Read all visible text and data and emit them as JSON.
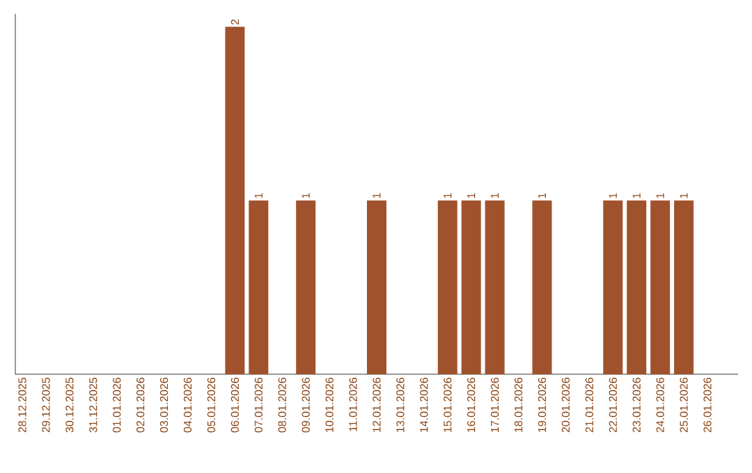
{
  "chart_data": {
    "type": "bar",
    "color": "#a0522d",
    "tick_labels": "x",
    "categories": [
      "28.12.2025",
      "29.12.2025",
      "30.12.2025",
      "31.12.2025",
      "01.01.2026",
      "02.01.2026",
      "03.01.2026",
      "04.01.2026",
      "05.01.2026",
      "06.01.2026",
      "07.01.2026",
      "08.01.2026",
      "09.01.2026",
      "10.01.2026",
      "11.01.2026",
      "12.01.2026",
      "13.01.2026",
      "14.01.2026",
      "15.01.2026",
      "16.01.2026",
      "17.01.2026",
      "18.01.2026",
      "19.01.2026",
      "20.01.2026",
      "21.01.2026",
      "22.01.2026",
      "23.01.2026",
      "24.01.2026",
      "25.01.2026",
      "26.01.2026"
    ],
    "values": [
      0,
      0,
      0,
      0,
      0,
      0,
      0,
      0,
      0,
      2,
      1,
      0,
      1,
      0,
      0,
      1,
      0,
      0,
      1,
      1,
      1,
      0,
      1,
      0,
      0,
      1,
      1,
      1,
      1,
      0
    ],
    "value_labels": [
      null,
      null,
      null,
      null,
      null,
      null,
      null,
      null,
      null,
      "2",
      "1",
      null,
      "1",
      null,
      null,
      "1",
      null,
      null,
      "1",
      "1",
      "1",
      null,
      "1",
      null,
      null,
      "1",
      "1",
      "1",
      "1",
      null
    ]
  }
}
